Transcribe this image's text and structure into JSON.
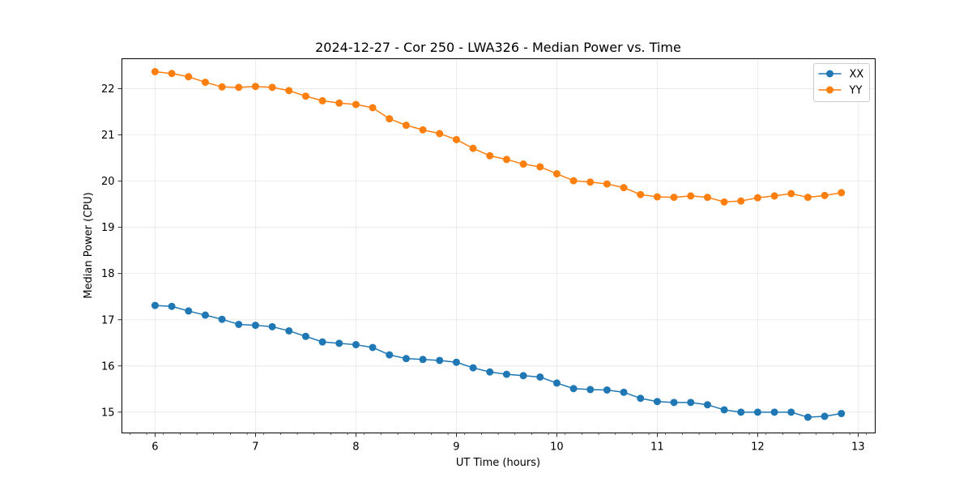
{
  "chart_data": {
    "type": "line",
    "title": "2024-12-27 - Cor 250 - LWA326 - Median Power vs. Time",
    "xlabel": "UT Time (hours)",
    "ylabel": "Median Power (CPU)",
    "xlim": [
      5.67,
      13.17
    ],
    "ylim": [
      14.55,
      22.65
    ],
    "xticks": [
      6,
      7,
      8,
      9,
      10,
      11,
      12,
      13
    ],
    "yticks": [
      15,
      16,
      17,
      18,
      19,
      20,
      21,
      22
    ],
    "grid": true,
    "legend_position": "top-right",
    "x": [
      6.0,
      6.1667,
      6.3333,
      6.5,
      6.6667,
      6.8333,
      7.0,
      7.1667,
      7.3333,
      7.5,
      7.6667,
      7.8333,
      8.0,
      8.1667,
      8.3333,
      8.5,
      8.6667,
      8.8333,
      9.0,
      9.1667,
      9.3333,
      9.5,
      9.6667,
      9.8333,
      10.0,
      10.1667,
      10.3333,
      10.5,
      10.6667,
      10.8333,
      11.0,
      11.1667,
      11.3333,
      11.5,
      11.6667,
      11.8333,
      12.0,
      12.1667,
      12.3333,
      12.5,
      12.6667,
      12.8333
    ],
    "series": [
      {
        "name": "XX",
        "color": "#1f77b4",
        "values": [
          17.31,
          17.29,
          17.19,
          17.1,
          17.01,
          16.9,
          16.88,
          16.85,
          16.76,
          16.64,
          16.52,
          16.49,
          16.46,
          16.4,
          16.24,
          16.16,
          16.14,
          16.12,
          16.08,
          15.96,
          15.87,
          15.82,
          15.79,
          15.76,
          15.63,
          15.51,
          15.49,
          15.48,
          15.43,
          15.3,
          15.23,
          15.21,
          15.21,
          15.16,
          15.05,
          15.0,
          15.0,
          15.0,
          15.0,
          14.89,
          14.91,
          14.97
        ]
      },
      {
        "name": "YY",
        "color": "#ff7f0e",
        "values": [
          22.37,
          22.33,
          22.26,
          22.14,
          22.04,
          22.03,
          22.05,
          22.03,
          21.96,
          21.84,
          21.74,
          21.69,
          21.66,
          21.59,
          21.35,
          21.21,
          21.11,
          21.03,
          20.9,
          20.71,
          20.55,
          20.47,
          20.37,
          20.31,
          20.16,
          20.01,
          19.98,
          19.94,
          19.86,
          19.71,
          19.66,
          19.65,
          19.68,
          19.65,
          19.55,
          19.57,
          19.64,
          19.68,
          19.73,
          19.65,
          19.69,
          19.75
        ]
      }
    ]
  }
}
